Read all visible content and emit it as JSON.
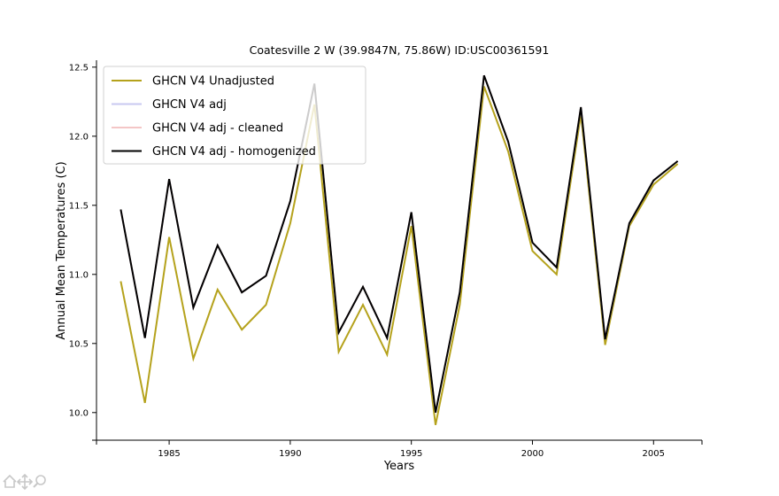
{
  "chart_data": {
    "type": "line",
    "title": "Coatesville 2 W (39.9847N, 75.86W) ID:USC00361591",
    "xlabel": "Years",
    "ylabel": "Annual Mean Temperatures (C)",
    "xlim": [
      1982,
      2007
    ],
    "ylim": [
      9.8,
      12.55
    ],
    "xticks": [
      1985,
      1990,
      1995,
      2000,
      2005
    ],
    "yticks": [
      10.0,
      10.5,
      11.0,
      11.5,
      12.0,
      12.5
    ],
    "ytick_labels": [
      "10.0",
      "10.5",
      "11.0",
      "11.5",
      "12.0",
      "12.5"
    ],
    "grid": false,
    "legend_position": "top-left",
    "x": [
      1983,
      1984,
      1985,
      1986,
      1987,
      1988,
      1989,
      1990,
      1991,
      1992,
      1993,
      1994,
      1995,
      1996,
      1997,
      1998,
      1999,
      2000,
      2001,
      2002,
      2003,
      2004,
      2005,
      2006
    ],
    "series": [
      {
        "name": "GHCN V4 Unadjusted",
        "color": "#b5a21c",
        "values": [
          10.95,
          10.07,
          11.27,
          10.39,
          10.89,
          10.6,
          10.78,
          11.37,
          12.23,
          10.44,
          10.78,
          10.42,
          11.35,
          9.91,
          10.78,
          12.36,
          11.89,
          11.17,
          11.0,
          12.16,
          10.49,
          11.35,
          11.65,
          11.8
        ]
      },
      {
        "name": "GHCN V4 adj",
        "color": "#c8c8f0",
        "values": [
          11.47,
          10.54,
          11.69,
          10.76,
          11.21,
          10.87,
          10.99,
          11.53,
          12.38,
          10.58,
          10.91,
          10.54,
          11.45,
          10.0,
          10.87,
          12.44,
          11.96,
          11.23,
          11.05,
          12.21,
          10.53,
          11.37,
          11.68,
          11.82
        ]
      },
      {
        "name": "GHCN V4 adj - cleaned",
        "color": "#f4c6c6",
        "values": [
          11.47,
          10.54,
          11.69,
          10.76,
          11.21,
          10.87,
          10.99,
          11.53,
          12.38,
          10.58,
          10.91,
          10.54,
          11.45,
          10.0,
          10.87,
          12.44,
          11.96,
          11.23,
          11.05,
          12.21,
          10.53,
          11.37,
          11.68,
          11.82
        ]
      },
      {
        "name": "GHCN V4 adj - homogenized",
        "color": "#000000",
        "values": [
          11.47,
          10.54,
          11.69,
          10.76,
          11.21,
          10.87,
          10.99,
          11.53,
          12.38,
          10.58,
          10.91,
          10.54,
          11.45,
          10.0,
          10.87,
          12.44,
          11.96,
          11.23,
          11.05,
          12.21,
          10.53,
          11.37,
          11.68,
          11.82
        ]
      }
    ]
  },
  "toolbar": {
    "icons": [
      "home-icon",
      "pan-icon",
      "zoom-icon"
    ]
  }
}
